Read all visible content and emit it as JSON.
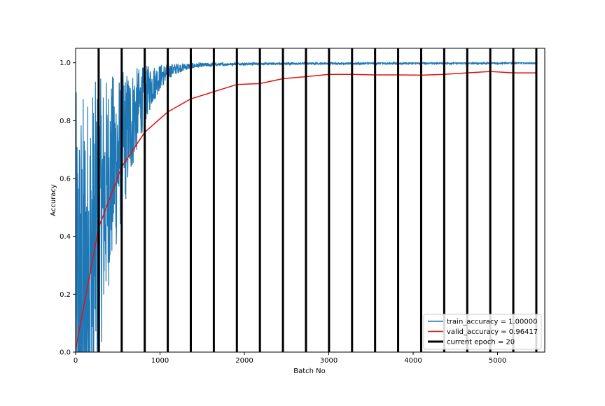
{
  "chart_data": {
    "type": "line",
    "title": "",
    "xlabel": "Batch No",
    "ylabel": "Accuracy",
    "xlim": [
      0,
      5560
    ],
    "ylim": [
      0,
      1.05
    ],
    "x_ticks": [
      0,
      1000,
      2000,
      3000,
      4000,
      5000
    ],
    "y_ticks": [
      0.0,
      0.2,
      0.4,
      0.6,
      0.8,
      1.0
    ],
    "x_tick_labels": [
      "0",
      "1000",
      "2000",
      "3000",
      "4000",
      "5000"
    ],
    "y_tick_labels": [
      "0.0",
      "0.2",
      "0.4",
      "0.6",
      "0.8",
      "1.0"
    ],
    "grid": false,
    "legend_position": "lower-right",
    "series": [
      {
        "name": "train_accuracy = 1.00000",
        "color": "#1f77b4",
        "style": "noisy-line",
        "x": [
          0,
          50,
          100,
          150,
          200,
          250,
          300,
          350,
          400,
          450,
          500,
          550,
          600,
          650,
          700,
          750,
          800,
          850,
          900,
          950,
          1000,
          1050,
          1100,
          1150,
          1200,
          1250,
          1300,
          1350,
          1400,
          1500,
          1600,
          1700,
          1800,
          1900,
          2000,
          2500,
          3000,
          3500,
          4000,
          4500,
          5000,
          5470
        ],
        "values": [
          0.04,
          0.1,
          0.17,
          0.26,
          0.34,
          0.42,
          0.48,
          0.54,
          0.6,
          0.64,
          0.67,
          0.71,
          0.75,
          0.79,
          0.82,
          0.85,
          0.88,
          0.9,
          0.92,
          0.935,
          0.95,
          0.96,
          0.97,
          0.975,
          0.98,
          0.983,
          0.986,
          0.988,
          0.99,
          0.992,
          0.993,
          0.994,
          0.995,
          0.996,
          0.996,
          0.997,
          0.998,
          0.998,
          0.999,
          0.999,
          0.999,
          1.0
        ]
      },
      {
        "name": "valid_accuracy = 0.96417",
        "color": "#e8100f",
        "style": "line",
        "x": [
          0,
          110,
          273,
          546,
          819,
          1092,
          1365,
          1638,
          1911,
          2184,
          2457,
          2730,
          3003,
          3276,
          3549,
          3822,
          4095,
          4368,
          4641,
          4914,
          5187,
          5460
        ],
        "values": [
          0.01,
          0.18,
          0.43,
          0.64,
          0.76,
          0.83,
          0.875,
          0.9,
          0.925,
          0.928,
          0.945,
          0.952,
          0.96,
          0.96,
          0.958,
          0.958,
          0.957,
          0.96,
          0.965,
          0.97,
          0.965,
          0.965
        ]
      },
      {
        "name": "current epoch = 20",
        "color": "#000000",
        "style": "vertical-lines",
        "x": [
          273,
          546,
          819,
          1092,
          1365,
          1638,
          1911,
          2184,
          2457,
          2730,
          3003,
          3276,
          3549,
          3822,
          4095,
          4368,
          4641,
          4914,
          5187,
          5460
        ]
      }
    ]
  }
}
